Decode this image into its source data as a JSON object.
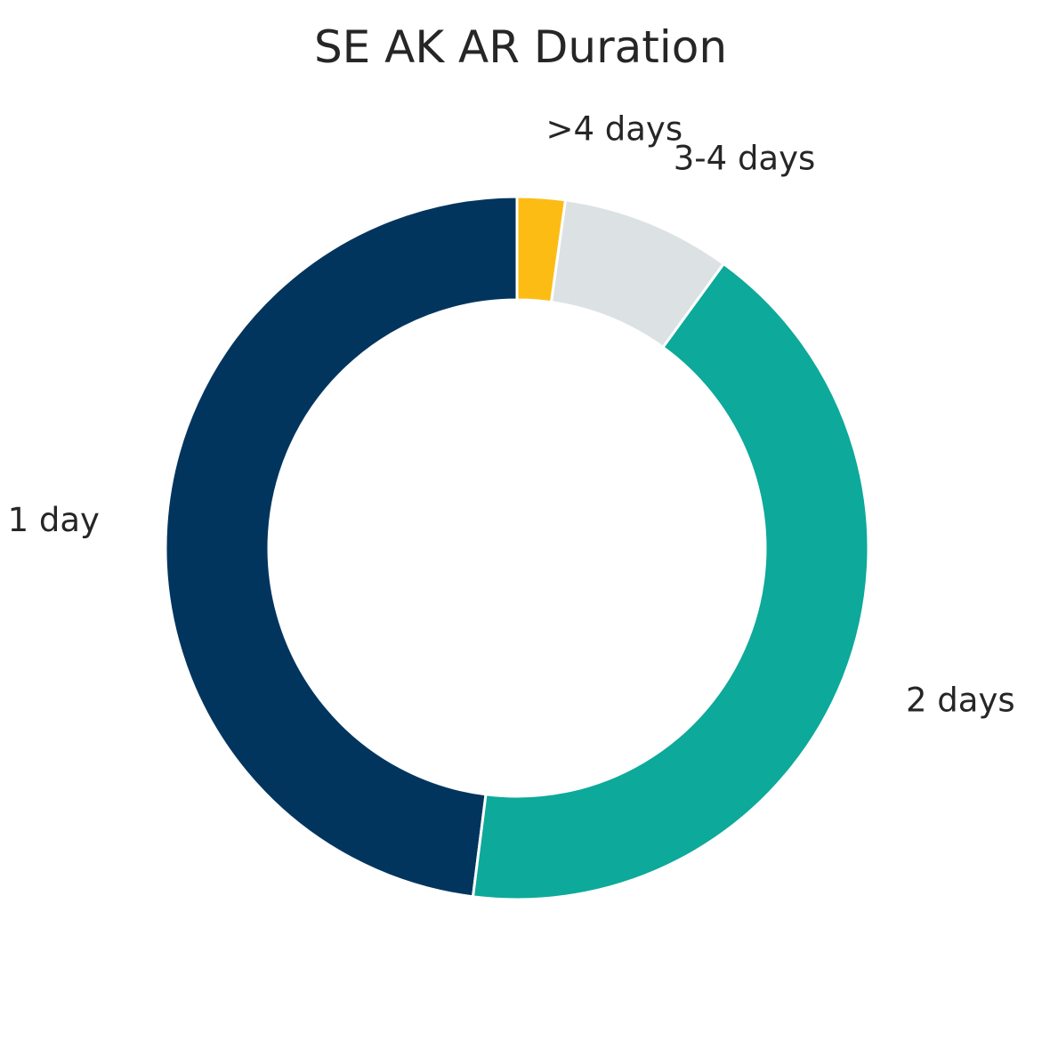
{
  "chart_data": {
    "type": "pie",
    "style": "donut",
    "title": "SE AK AR Duration",
    "categories": [
      "1 day",
      "2 days",
      "3-4 days",
      ">4 days"
    ],
    "values": [
      48.0,
      42.0,
      7.8,
      2.2
    ],
    "value_unit": "percent",
    "colors": [
      "#02355E",
      "#0DA99A",
      "#DCE1E4",
      "#FCBC14"
    ],
    "edge_color": "#FFFFFF",
    "start_angle_deg": 90,
    "direction": "counterclockwise",
    "legend": "none"
  }
}
